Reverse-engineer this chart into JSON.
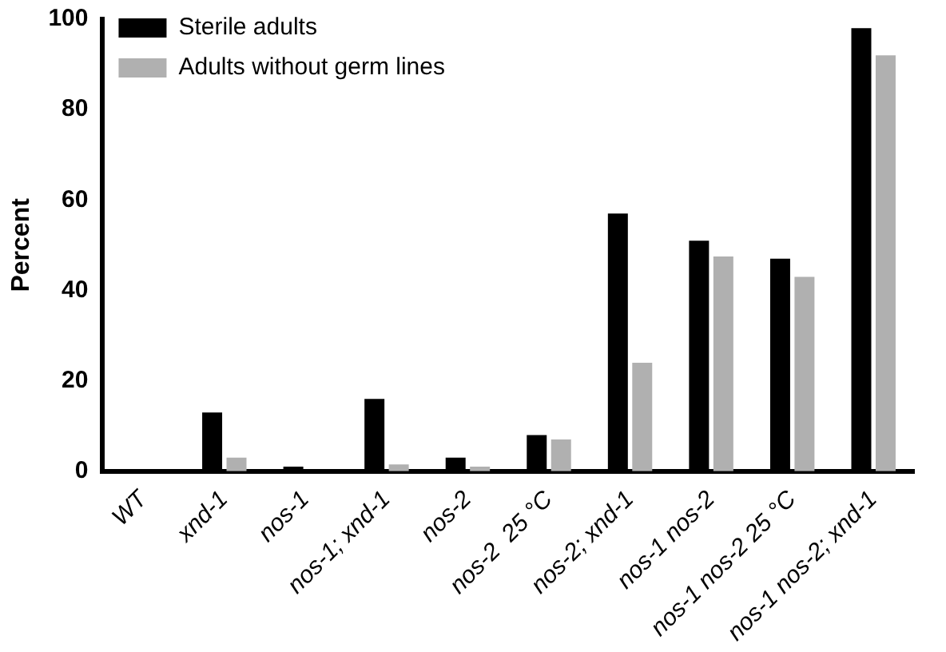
{
  "chart_data": {
    "type": "bar",
    "ylabel": "Percent",
    "categories": [
      "WT",
      "xnd-1",
      "nos-1",
      "nos-1; xnd-1",
      "nos-2",
      "nos-2  25 °C",
      "nos-2; xnd-1",
      "nos-1 nos-2",
      "nos-1 nos-2 25 °C",
      "nos-1 nos-2; xnd-1"
    ],
    "series": [
      {
        "name": "Sterile adults",
        "color": "#000000",
        "values": [
          0,
          13,
          1,
          16,
          3,
          8,
          57,
          51,
          47,
          98
        ]
      },
      {
        "name": "Adults without germ lines",
        "color": "#b0b0b0",
        "values": [
          0,
          3,
          0,
          1.5,
          1,
          7,
          24,
          47.5,
          43,
          92
        ]
      }
    ],
    "ylim": [
      0,
      100
    ],
    "yticks": [
      0,
      20,
      40,
      60,
      80,
      100
    ],
    "grid": false,
    "legend": "top left"
  }
}
